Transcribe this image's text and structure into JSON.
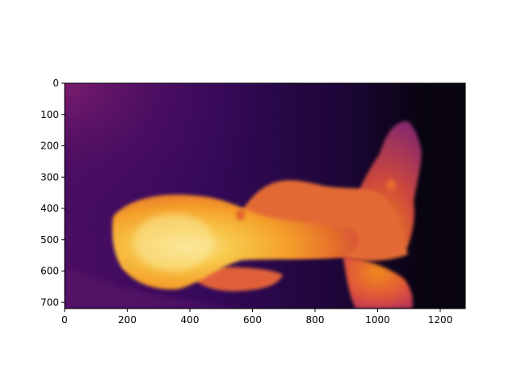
{
  "chart_data": {
    "type": "heatmap",
    "title": "",
    "xlabel": "",
    "ylabel": "",
    "colormap": "inferno",
    "image_width": 1280,
    "image_height": 720,
    "xlim": [
      0,
      1280
    ],
    "ylim": [
      720,
      0
    ],
    "x_ticks": [
      0,
      200,
      400,
      600,
      800,
      1000,
      1200
    ],
    "y_ticks": [
      0,
      100,
      200,
      300,
      400,
      500,
      600,
      700
    ],
    "grid": false,
    "legend": "none",
    "colors": {
      "dark": "#06030f",
      "purple": "#3a0b5e",
      "magenta": "#7a1c6d",
      "red_orange": "#d0493b",
      "orange": "#f08a1e",
      "yellow": "#f8c84b",
      "pale": "#fbe89a"
    }
  }
}
